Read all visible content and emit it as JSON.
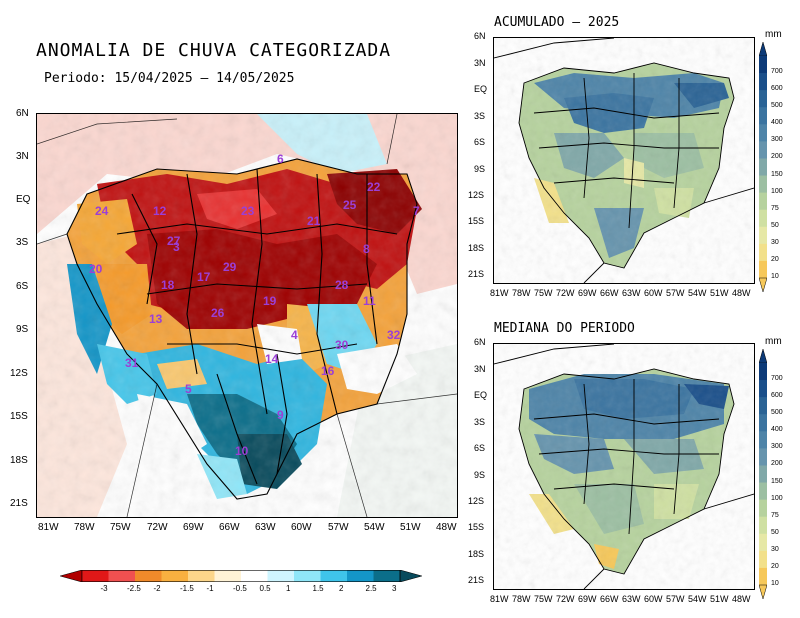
{
  "title": "ANOMALIA DE CHUVA CATEGORIZADA",
  "period": "Periodo: 15/04/2025 – 14/05/2025",
  "main_map": {
    "lat_labels": [
      "6N",
      "3N",
      "EQ",
      "3S",
      "6S",
      "9S",
      "12S",
      "15S",
      "18S",
      "21S"
    ],
    "lon_labels": [
      "81W",
      "78W",
      "75W",
      "72W",
      "69W",
      "66W",
      "63W",
      "60W",
      "57W",
      "54W",
      "51W",
      "48W"
    ],
    "basin_numbers": [
      "6",
      "12",
      "24",
      "23",
      "21",
      "22",
      "25",
      "27",
      "20",
      "29",
      "8",
      "17",
      "18",
      "28",
      "11",
      "13",
      "26",
      "19",
      "4",
      "14",
      "30",
      "32",
      "16",
      "31",
      "5",
      "9",
      "10",
      "3",
      "7"
    ]
  },
  "colorbar": {
    "labels": [
      "-3",
      "-2.5",
      "-2",
      "-1.5",
      "-1",
      "-0.5",
      "0.5",
      "1",
      "1.5",
      "2",
      "2.5",
      "3"
    ],
    "colors": [
      "#b00000",
      "#e01818",
      "#f05050",
      "#f08a2a",
      "#f8b040",
      "#fcd68a",
      "#fff3d6",
      "#ffffff",
      "#cff5ff",
      "#8fe6f8",
      "#3fc4ea",
      "#1496c8",
      "#0b6e8a",
      "#084a5c"
    ]
  },
  "acumulado": {
    "title": "ACUMULADO – 2025",
    "lat_labels": [
      "6N",
      "3N",
      "EQ",
      "3S",
      "6S",
      "9S",
      "12S",
      "15S",
      "18S",
      "21S"
    ],
    "lon_labels": [
      "81W",
      "78W",
      "75W",
      "72W",
      "69W",
      "66W",
      "63W",
      "60W",
      "57W",
      "54W",
      "51W",
      "48W"
    ]
  },
  "mediana": {
    "title": "MEDIANA DO PERIODO",
    "lat_labels": [
      "6N",
      "3N",
      "EQ",
      "3S",
      "6S",
      "9S",
      "12S",
      "15S",
      "18S",
      "21S"
    ],
    "lon_labels": [
      "81W",
      "78W",
      "75W",
      "72W",
      "69W",
      "66W",
      "63W",
      "60W",
      "57W",
      "54W",
      "51W",
      "48W"
    ]
  },
  "mm_scale": {
    "unit": "mm",
    "labels": [
      "700",
      "600",
      "500",
      "400",
      "300",
      "200",
      "150",
      "100",
      "75",
      "50",
      "30",
      "20",
      "10"
    ],
    "colors": [
      "#0c3a78",
      "#1a4f8a",
      "#2a6395",
      "#3b74a0",
      "#4e84a8",
      "#6694ad",
      "#80a8a8",
      "#9cbfa2",
      "#b6d29e",
      "#cfe0a2",
      "#e6e8a6",
      "#f2e08a",
      "#f6c85a"
    ]
  }
}
